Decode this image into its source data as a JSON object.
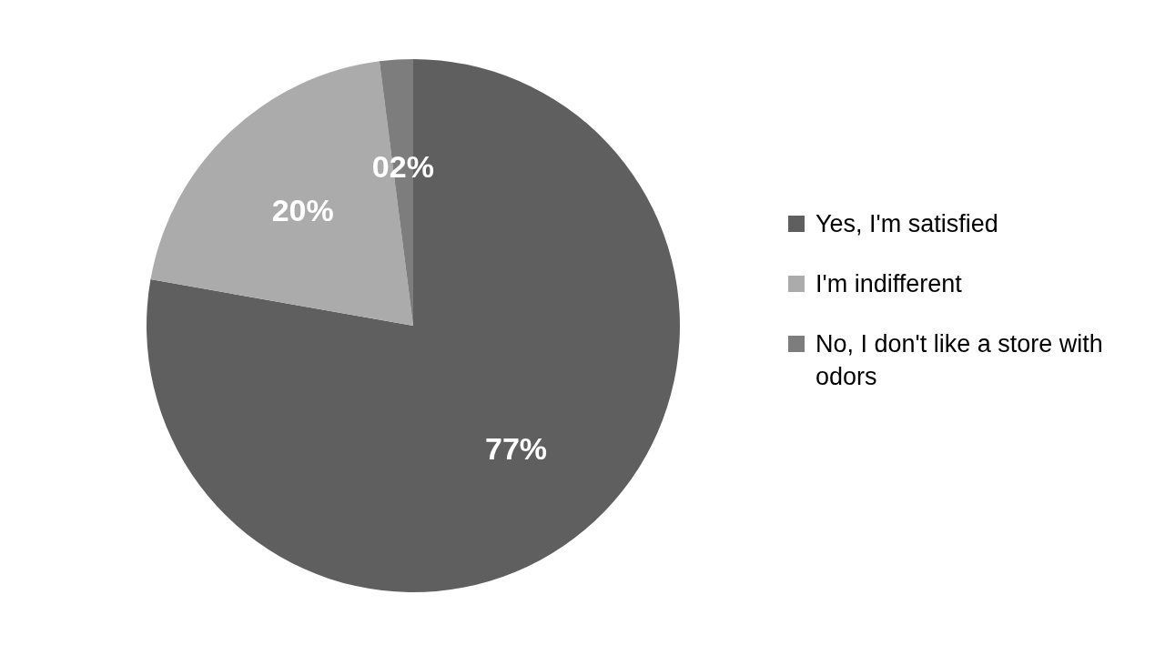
{
  "chart_data": {
    "type": "pie",
    "categories": [
      "Yes, I'm satisfied",
      "I'm indifferent",
      "No, I don't like a store with odors"
    ],
    "values": [
      77,
      20,
      2
    ],
    "colors": [
      "#5f5f5f",
      "#ababab",
      "#7d7d7d"
    ],
    "value_labels": [
      "77%",
      "20%",
      "02%"
    ],
    "legend": "right"
  }
}
